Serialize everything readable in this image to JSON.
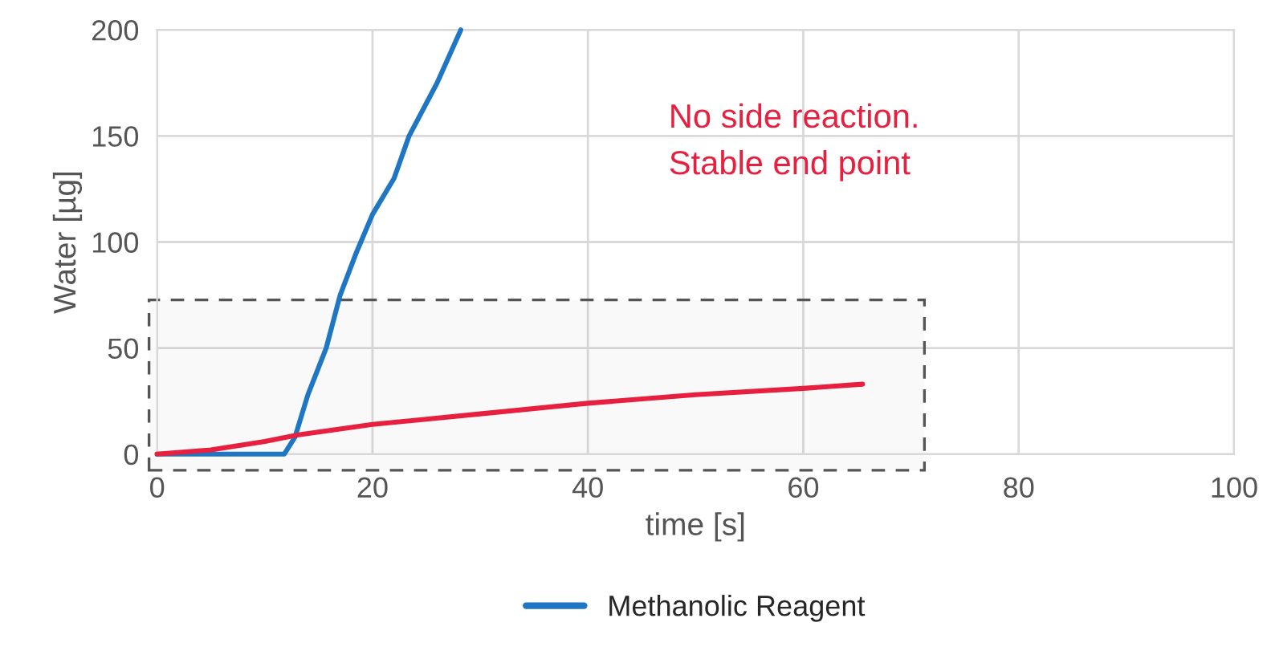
{
  "chart_data": {
    "type": "line",
    "xlabel": "time [s]",
    "ylabel": "Water [µg]",
    "xlim": [
      0,
      100
    ],
    "xticks": [
      0,
      20,
      40,
      60,
      80,
      100
    ],
    "ylim": [
      0,
      200
    ],
    "yticks": [
      0,
      50,
      100,
      150,
      200
    ],
    "grid": true,
    "legend": "bottom",
    "annotations": [
      "No side reaction.",
      "Stable end point"
    ],
    "series": [
      {
        "name": "Methanolic Reagent",
        "color": "#1f77c4",
        "x": [
          0,
          5,
          10,
          11.8,
          12.8,
          14,
          15.7,
          17,
          18.5,
          20,
          22,
          23.4,
          26,
          28.2
        ],
        "values": [
          0,
          0,
          0,
          0,
          8,
          28,
          50,
          75,
          95,
          113,
          130,
          150,
          175,
          200
        ]
      },
      {
        "color": "#e8203f",
        "x": [
          0,
          5,
          10,
          13,
          20,
          30,
          40,
          50,
          60,
          65.5
        ],
        "values": [
          0,
          2,
          6,
          9,
          14,
          19,
          24,
          28,
          31,
          33
        ]
      }
    ]
  }
}
